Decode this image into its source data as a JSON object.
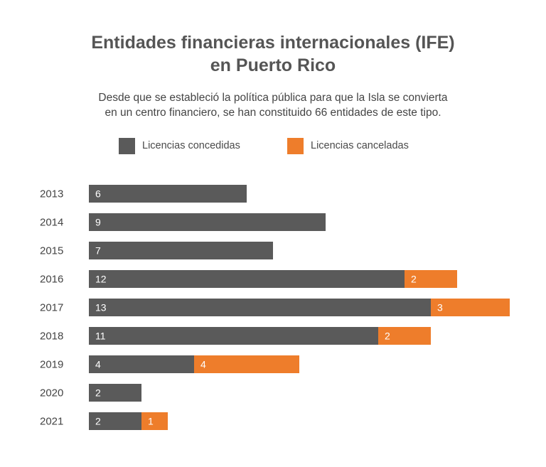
{
  "header": {
    "title_line1": "Entidades financieras internacionales (IFE)",
    "title_line2": "en Puerto Rico",
    "subtitle_line1": "Desde que se estableció la política pública para que la Isla se convierta",
    "subtitle_line2": "en un centro financiero, se han constituido 66 entidades de este tipo."
  },
  "legend": {
    "granted": "Licencias concedidas",
    "cancelled": "Licencias canceladas"
  },
  "colors": {
    "granted": "#5a5a5a",
    "cancelled": "#ee7d2b"
  },
  "chart_data": {
    "type": "bar",
    "orientation": "horizontal",
    "stacked": true,
    "categories": [
      "2013",
      "2014",
      "2015",
      "2016",
      "2017",
      "2018",
      "2019",
      "2020",
      "2021"
    ],
    "series": [
      {
        "name": "Licencias concedidas",
        "values": [
          6,
          9,
          7,
          12,
          13,
          11,
          4,
          2,
          2
        ]
      },
      {
        "name": "Licencias canceladas",
        "values": [
          0,
          0,
          0,
          2,
          3,
          2,
          4,
          0,
          1
        ]
      }
    ],
    "xlim": [
      0,
      16
    ],
    "grid": false,
    "legend_position": "top"
  }
}
